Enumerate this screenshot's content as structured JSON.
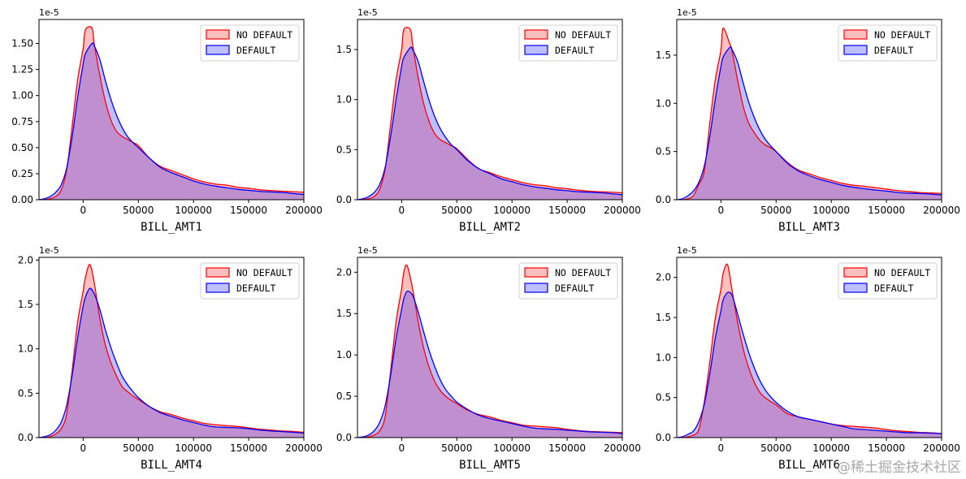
{
  "watermark": "@稀土掘金技术社区",
  "colors": {
    "no_default": "#ff0000",
    "no_default_fill": "rgba(255,0,0,0.25)",
    "default": "#0000ff",
    "default_fill": "rgba(0,0,255,0.25)"
  },
  "chart_data": [
    {
      "type": "area",
      "title": "",
      "xlabel": "BILL_AMT1",
      "ylabel": "",
      "y_offset_label": "1e-5",
      "xlim": [
        -40000,
        200000
      ],
      "ylim": [
        0,
        1.73
      ],
      "xticks": [
        0,
        50000,
        100000,
        150000,
        200000
      ],
      "xtick_labels": [
        "0",
        "50000",
        "100000",
        "150000",
        "200000"
      ],
      "yticks": [
        0,
        0.25,
        0.5,
        0.75,
        1.0,
        1.25,
        1.5
      ],
      "ytick_labels": [
        "0.00",
        "0.25",
        "0.50",
        "0.75",
        "1.00",
        "1.25",
        "1.50"
      ],
      "legend": {
        "position": "upper-right",
        "entries": [
          "NO DEFAULT",
          "DEFAULT"
        ]
      },
      "x": [
        -40000,
        -35000,
        -30000,
        -25000,
        -20000,
        -15000,
        -10000,
        -5000,
        0,
        2000,
        8000,
        10000,
        15000,
        20000,
        25000,
        30000,
        35000,
        40000,
        45000,
        50000,
        60000,
        70000,
        80000,
        90000,
        100000,
        110000,
        120000,
        130000,
        140000,
        150000,
        160000,
        170000,
        180000,
        190000,
        200000
      ],
      "series": [
        {
          "name": "NO DEFAULT",
          "values": [
            0,
            0,
            0.01,
            0.03,
            0.09,
            0.28,
            0.7,
            1.15,
            1.45,
            1.63,
            1.65,
            1.5,
            1.2,
            0.95,
            0.77,
            0.66,
            0.61,
            0.58,
            0.55,
            0.52,
            0.4,
            0.32,
            0.28,
            0.24,
            0.2,
            0.17,
            0.15,
            0.14,
            0.12,
            0.11,
            0.095,
            0.088,
            0.082,
            0.077,
            0.072
          ]
        },
        {
          "name": "DEFAULT",
          "values": [
            0,
            0.01,
            0.03,
            0.07,
            0.14,
            0.3,
            0.6,
            0.98,
            1.3,
            1.4,
            1.5,
            1.48,
            1.35,
            1.15,
            0.97,
            0.82,
            0.7,
            0.61,
            0.55,
            0.5,
            0.4,
            0.31,
            0.26,
            0.22,
            0.18,
            0.15,
            0.13,
            0.115,
            0.1,
            0.09,
            0.08,
            0.075,
            0.07,
            0.06,
            0.05
          ]
        }
      ]
    },
    {
      "type": "area",
      "title": "",
      "xlabel": "BILL_AMT2",
      "ylabel": "",
      "y_offset_label": "1e-5",
      "xlim": [
        -40000,
        200000
      ],
      "ylim": [
        0,
        1.8
      ],
      "xticks": [
        0,
        50000,
        100000,
        150000,
        200000
      ],
      "xtick_labels": [
        "0",
        "50000",
        "100000",
        "150000",
        "200000"
      ],
      "yticks": [
        0,
        0.5,
        1.0,
        1.5
      ],
      "ytick_labels": [
        "0.0",
        "0.5",
        "1.0",
        "1.5"
      ],
      "legend": {
        "position": "upper-right",
        "entries": [
          "NO DEFAULT",
          "DEFAULT"
        ]
      },
      "x": [
        -40000,
        -35000,
        -30000,
        -25000,
        -20000,
        -15000,
        -10000,
        -5000,
        0,
        2000,
        8000,
        10000,
        15000,
        20000,
        25000,
        30000,
        35000,
        40000,
        45000,
        50000,
        60000,
        70000,
        80000,
        90000,
        100000,
        110000,
        120000,
        130000,
        140000,
        150000,
        160000,
        170000,
        180000,
        190000,
        200000
      ],
      "series": [
        {
          "name": "NO DEFAULT",
          "values": [
            0,
            0,
            0.01,
            0.03,
            0.1,
            0.3,
            0.75,
            1.2,
            1.5,
            1.7,
            1.7,
            1.55,
            1.22,
            0.96,
            0.78,
            0.66,
            0.6,
            0.57,
            0.54,
            0.51,
            0.4,
            0.31,
            0.27,
            0.23,
            0.2,
            0.17,
            0.15,
            0.14,
            0.12,
            0.11,
            0.095,
            0.085,
            0.08,
            0.075,
            0.07
          ]
        },
        {
          "name": "DEFAULT",
          "values": [
            0,
            0.01,
            0.03,
            0.07,
            0.15,
            0.32,
            0.63,
            1.0,
            1.33,
            1.42,
            1.52,
            1.5,
            1.38,
            1.18,
            0.99,
            0.83,
            0.71,
            0.62,
            0.55,
            0.5,
            0.39,
            0.31,
            0.26,
            0.21,
            0.18,
            0.15,
            0.13,
            0.115,
            0.1,
            0.09,
            0.08,
            0.075,
            0.07,
            0.06,
            0.05
          ]
        }
      ]
    },
    {
      "type": "area",
      "title": "",
      "xlabel": "BILL_AMT3",
      "ylabel": "",
      "y_offset_label": "1e-5",
      "xlim": [
        -40000,
        200000
      ],
      "ylim": [
        0,
        1.87
      ],
      "xticks": [
        0,
        50000,
        100000,
        150000,
        200000
      ],
      "xtick_labels": [
        "0",
        "50000",
        "100000",
        "150000",
        "200000"
      ],
      "yticks": [
        0,
        0.5,
        1.0,
        1.5
      ],
      "ytick_labels": [
        "0.0",
        "0.5",
        "1.0",
        "1.5"
      ],
      "legend": {
        "position": "upper-right",
        "entries": [
          "NO DEFAULT",
          "DEFAULT"
        ]
      },
      "x": [
        -40000,
        -35000,
        -30000,
        -25000,
        -20000,
        -15000,
        -10000,
        -5000,
        0,
        2000,
        8000,
        10000,
        15000,
        20000,
        25000,
        30000,
        35000,
        40000,
        45000,
        50000,
        60000,
        70000,
        80000,
        90000,
        100000,
        110000,
        120000,
        130000,
        140000,
        150000,
        160000,
        170000,
        180000,
        190000,
        200000
      ],
      "series": [
        {
          "name": "NO DEFAULT",
          "values": [
            0,
            0,
            0.01,
            0.04,
            0.16,
            0.3,
            0.8,
            1.25,
            1.55,
            1.78,
            1.62,
            1.55,
            1.25,
            0.98,
            0.8,
            0.7,
            0.62,
            0.57,
            0.54,
            0.5,
            0.39,
            0.31,
            0.27,
            0.23,
            0.2,
            0.17,
            0.15,
            0.14,
            0.125,
            0.11,
            0.095,
            0.085,
            0.075,
            0.07,
            0.065
          ]
        },
        {
          "name": "DEFAULT",
          "values": [
            0,
            0.01,
            0.04,
            0.09,
            0.18,
            0.35,
            0.66,
            1.05,
            1.38,
            1.48,
            1.58,
            1.56,
            1.43,
            1.22,
            1.02,
            0.86,
            0.73,
            0.63,
            0.56,
            0.5,
            0.38,
            0.3,
            0.25,
            0.21,
            0.18,
            0.15,
            0.13,
            0.115,
            0.1,
            0.09,
            0.075,
            0.068,
            0.064,
            0.058,
            0.05
          ]
        }
      ]
    },
    {
      "type": "area",
      "title": "",
      "xlabel": "BILL_AMT4",
      "ylabel": "",
      "y_offset_label": "1e-5",
      "xlim": [
        -40000,
        200000
      ],
      "ylim": [
        0,
        2.03
      ],
      "xticks": [
        0,
        50000,
        100000,
        150000,
        200000
      ],
      "xtick_labels": [
        "0",
        "50000",
        "100000",
        "150000",
        "200000"
      ],
      "yticks": [
        0,
        0.5,
        1.0,
        1.5,
        2.0
      ],
      "ytick_labels": [
        "0.0",
        "0.5",
        "1.0",
        "1.5",
        "2.0"
      ],
      "legend": {
        "position": "upper-right",
        "entries": [
          "NO DEFAULT",
          "DEFAULT"
        ]
      },
      "x": [
        -40000,
        -35000,
        -30000,
        -25000,
        -20000,
        -15000,
        -10000,
        -5000,
        0,
        2000,
        6000,
        10000,
        15000,
        20000,
        25000,
        30000,
        35000,
        40000,
        45000,
        50000,
        60000,
        70000,
        80000,
        90000,
        100000,
        110000,
        120000,
        130000,
        140000,
        150000,
        160000,
        170000,
        180000,
        190000,
        200000
      ],
      "series": [
        {
          "name": "NO DEFAULT",
          "values": [
            0,
            0,
            0.01,
            0.04,
            0.1,
            0.26,
            0.75,
            1.3,
            1.65,
            1.8,
            1.95,
            1.75,
            1.35,
            1.05,
            0.85,
            0.7,
            0.58,
            0.52,
            0.47,
            0.43,
            0.35,
            0.29,
            0.26,
            0.22,
            0.19,
            0.16,
            0.145,
            0.135,
            0.125,
            0.11,
            0.095,
            0.085,
            0.075,
            0.07,
            0.06
          ]
        },
        {
          "name": "DEFAULT",
          "values": [
            0,
            0.01,
            0.03,
            0.08,
            0.17,
            0.36,
            0.7,
            1.12,
            1.48,
            1.58,
            1.68,
            1.62,
            1.45,
            1.22,
            1.02,
            0.85,
            0.7,
            0.6,
            0.52,
            0.45,
            0.35,
            0.28,
            0.24,
            0.2,
            0.17,
            0.14,
            0.12,
            0.115,
            0.11,
            0.1,
            0.085,
            0.075,
            0.068,
            0.06,
            0.05
          ]
        }
      ]
    },
    {
      "type": "area",
      "title": "",
      "xlabel": "BILL_AMT5",
      "ylabel": "",
      "y_offset_label": "1e-5",
      "xlim": [
        -40000,
        200000
      ],
      "ylim": [
        0,
        2.18
      ],
      "xticks": [
        0,
        50000,
        100000,
        150000,
        200000
      ],
      "xtick_labels": [
        "0",
        "50000",
        "100000",
        "150000",
        "200000"
      ],
      "yticks": [
        0,
        0.5,
        1.0,
        1.5,
        2.0
      ],
      "ytick_labels": [
        "0.0",
        "0.5",
        "1.0",
        "1.5",
        "2.0"
      ],
      "legend": {
        "position": "upper-right",
        "entries": [
          "NO DEFAULT",
          "DEFAULT"
        ]
      },
      "x": [
        -40000,
        -35000,
        -30000,
        -25000,
        -20000,
        -15000,
        -10000,
        -5000,
        0,
        2000,
        5000,
        10000,
        15000,
        20000,
        25000,
        30000,
        35000,
        40000,
        45000,
        50000,
        60000,
        70000,
        80000,
        90000,
        100000,
        110000,
        120000,
        130000,
        140000,
        150000,
        160000,
        170000,
        180000,
        190000,
        200000
      ],
      "series": [
        {
          "name": "NO DEFAULT",
          "values": [
            0,
            0,
            0.01,
            0.03,
            0.08,
            0.25,
            0.8,
            1.4,
            1.8,
            2.0,
            2.08,
            1.8,
            1.4,
            1.08,
            0.85,
            0.68,
            0.57,
            0.5,
            0.45,
            0.41,
            0.33,
            0.28,
            0.25,
            0.21,
            0.18,
            0.15,
            0.14,
            0.13,
            0.12,
            0.1,
            0.085,
            0.075,
            0.07,
            0.065,
            0.06
          ]
        },
        {
          "name": "DEFAULT",
          "values": [
            0,
            0.01,
            0.03,
            0.08,
            0.18,
            0.38,
            0.75,
            1.2,
            1.55,
            1.68,
            1.77,
            1.72,
            1.52,
            1.28,
            1.05,
            0.86,
            0.7,
            0.58,
            0.5,
            0.43,
            0.34,
            0.27,
            0.23,
            0.2,
            0.17,
            0.14,
            0.115,
            0.105,
            0.1,
            0.09,
            0.08,
            0.07,
            0.065,
            0.06,
            0.05
          ]
        }
      ]
    },
    {
      "type": "area",
      "title": "",
      "xlabel": "BILL_AMT6",
      "ylabel": "",
      "y_offset_label": "1e-5",
      "xlim": [
        -40000,
        200000
      ],
      "ylim": [
        0,
        2.25
      ],
      "xticks": [
        0,
        50000,
        100000,
        150000,
        200000
      ],
      "xtick_labels": [
        "0",
        "50000",
        "100000",
        "150000",
        "200000"
      ],
      "yticks": [
        0,
        0.5,
        1.0,
        1.5,
        2.0
      ],
      "ytick_labels": [
        "0.0",
        "0.5",
        "1.0",
        "1.5",
        "2.0"
      ],
      "legend": {
        "position": "upper-right",
        "entries": [
          "NO DEFAULT",
          "DEFAULT"
        ]
      },
      "x": [
        -40000,
        -35000,
        -30000,
        -25000,
        -20000,
        -15000,
        -10000,
        -5000,
        0,
        2000,
        6000,
        10000,
        15000,
        20000,
        25000,
        30000,
        35000,
        40000,
        45000,
        50000,
        60000,
        70000,
        80000,
        90000,
        100000,
        110000,
        120000,
        130000,
        140000,
        150000,
        160000,
        170000,
        180000,
        190000,
        200000
      ],
      "series": [
        {
          "name": "NO DEFAULT",
          "values": [
            0,
            0,
            0.01,
            0.03,
            0.1,
            0.45,
            0.95,
            1.5,
            1.85,
            2.05,
            2.16,
            1.85,
            1.45,
            1.12,
            0.88,
            0.7,
            0.57,
            0.5,
            0.45,
            0.41,
            0.3,
            0.26,
            0.23,
            0.2,
            0.17,
            0.15,
            0.14,
            0.13,
            0.12,
            0.1,
            0.085,
            0.075,
            0.065,
            0.06,
            0.05
          ]
        },
        {
          "name": "DEFAULT",
          "values": [
            0,
            0.01,
            0.04,
            0.08,
            0.2,
            0.42,
            0.8,
            1.25,
            1.58,
            1.72,
            1.81,
            1.78,
            1.55,
            1.3,
            1.07,
            0.88,
            0.72,
            0.6,
            0.51,
            0.44,
            0.33,
            0.26,
            0.23,
            0.2,
            0.17,
            0.14,
            0.11,
            0.1,
            0.09,
            0.08,
            0.07,
            0.06,
            0.06,
            0.055,
            0.05
          ]
        }
      ]
    }
  ]
}
